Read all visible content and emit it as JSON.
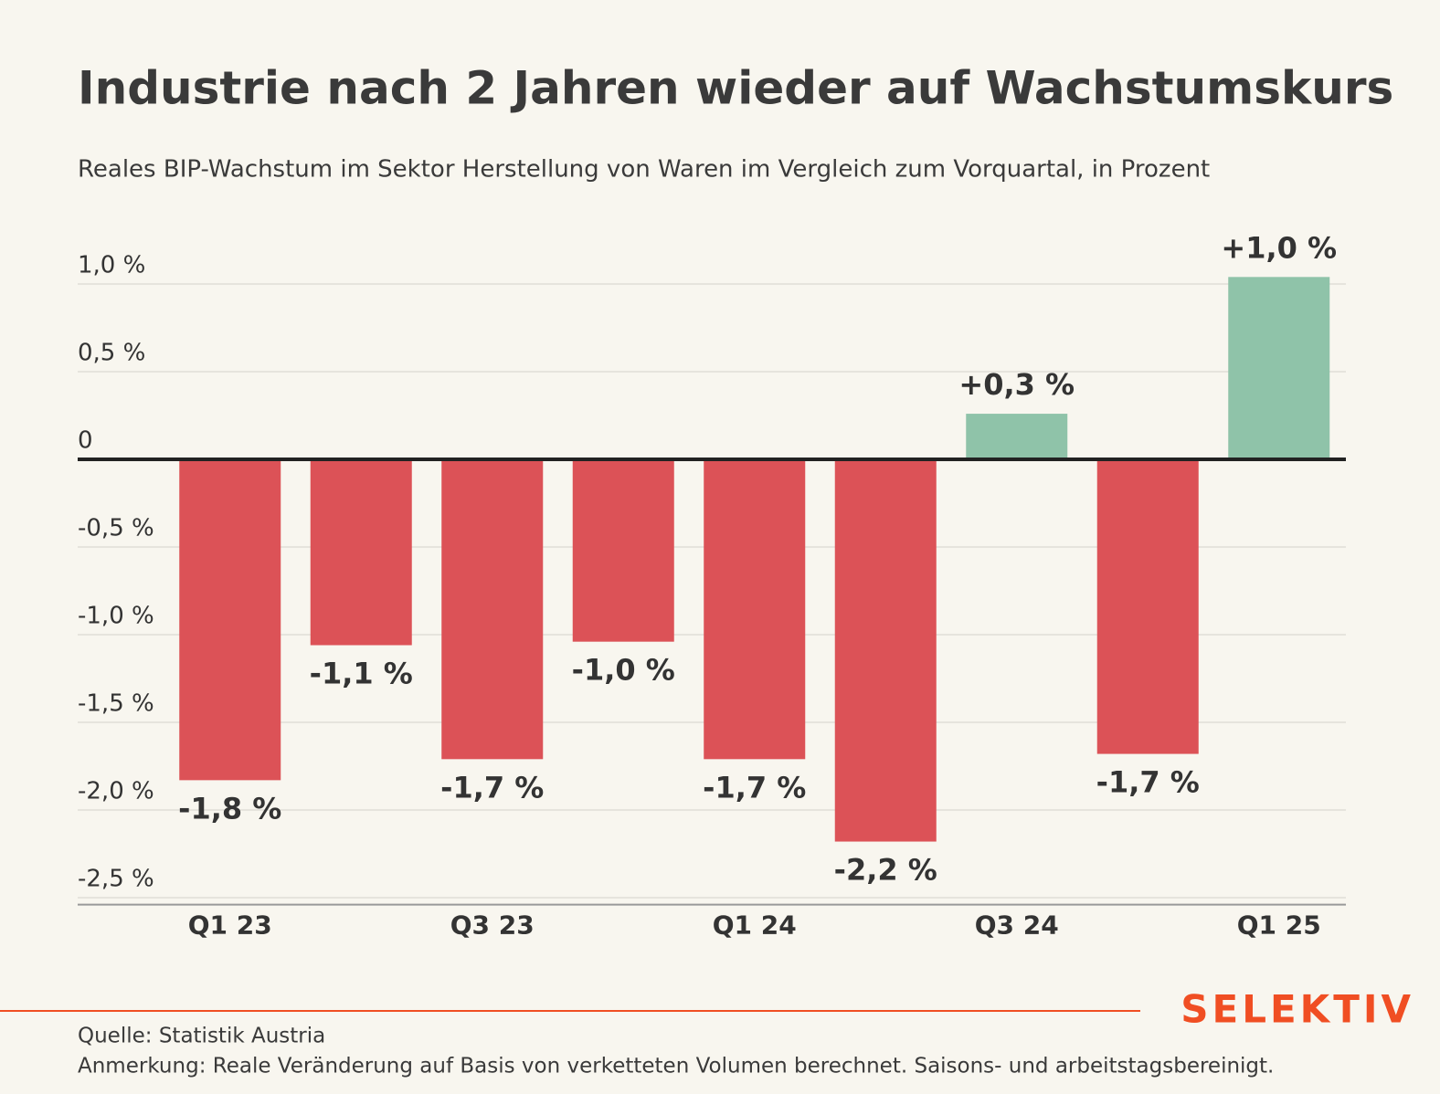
{
  "chart_data": {
    "type": "bar",
    "title": "Industrie nach 2 Jahren wieder auf Wachstumskurs",
    "subtitle": "Reales BIP-Wachstum im Sektor Herstellung von Waren im Vergleich zum Vorquartal, in Prozent",
    "categories": [
      "Q1 23",
      null,
      "Q3 23",
      null,
      "Q1 24",
      null,
      "Q3 24",
      null,
      "Q1 25"
    ],
    "values": [
      -1.83,
      -1.06,
      -1.71,
      -1.04,
      -1.71,
      -2.18,
      0.26,
      -1.68,
      1.04
    ],
    "value_labels": [
      "-1,8 %",
      "-1,1 %",
      "-1,7 %",
      "-1,0 %",
      "-1,7 %",
      "-2,2 %",
      "+0,3 %",
      "-1,7 %",
      "+1,0 %"
    ],
    "negative_color": "#dc5257",
    "positive_color": "#8fc3a9",
    "ylim": [
      -2.54,
      1.1
    ],
    "yticks": [
      {
        "value": 1.0,
        "label": "1,0 %"
      },
      {
        "value": 0.5,
        "label": "0,5 %"
      },
      0,
      {
        "value": -0.5,
        "label": "-0,5 %"
      },
      {
        "value": -1.0,
        "label": "-1,0 %"
      },
      {
        "value": -1.5,
        "label": "-1,5 %"
      },
      {
        "value": -2.0,
        "label": "-2,0 %"
      },
      {
        "value": -2.5,
        "label": "-2,5 %"
      }
    ],
    "grid": true,
    "source": "Quelle: Statistik Austria",
    "note": "Anmerkung: Reale Veränderung auf Basis von verketteten Volumen berechnet. Saisons- und arbeitstagsbereinigt.",
    "brand": "SELEKTIV"
  }
}
